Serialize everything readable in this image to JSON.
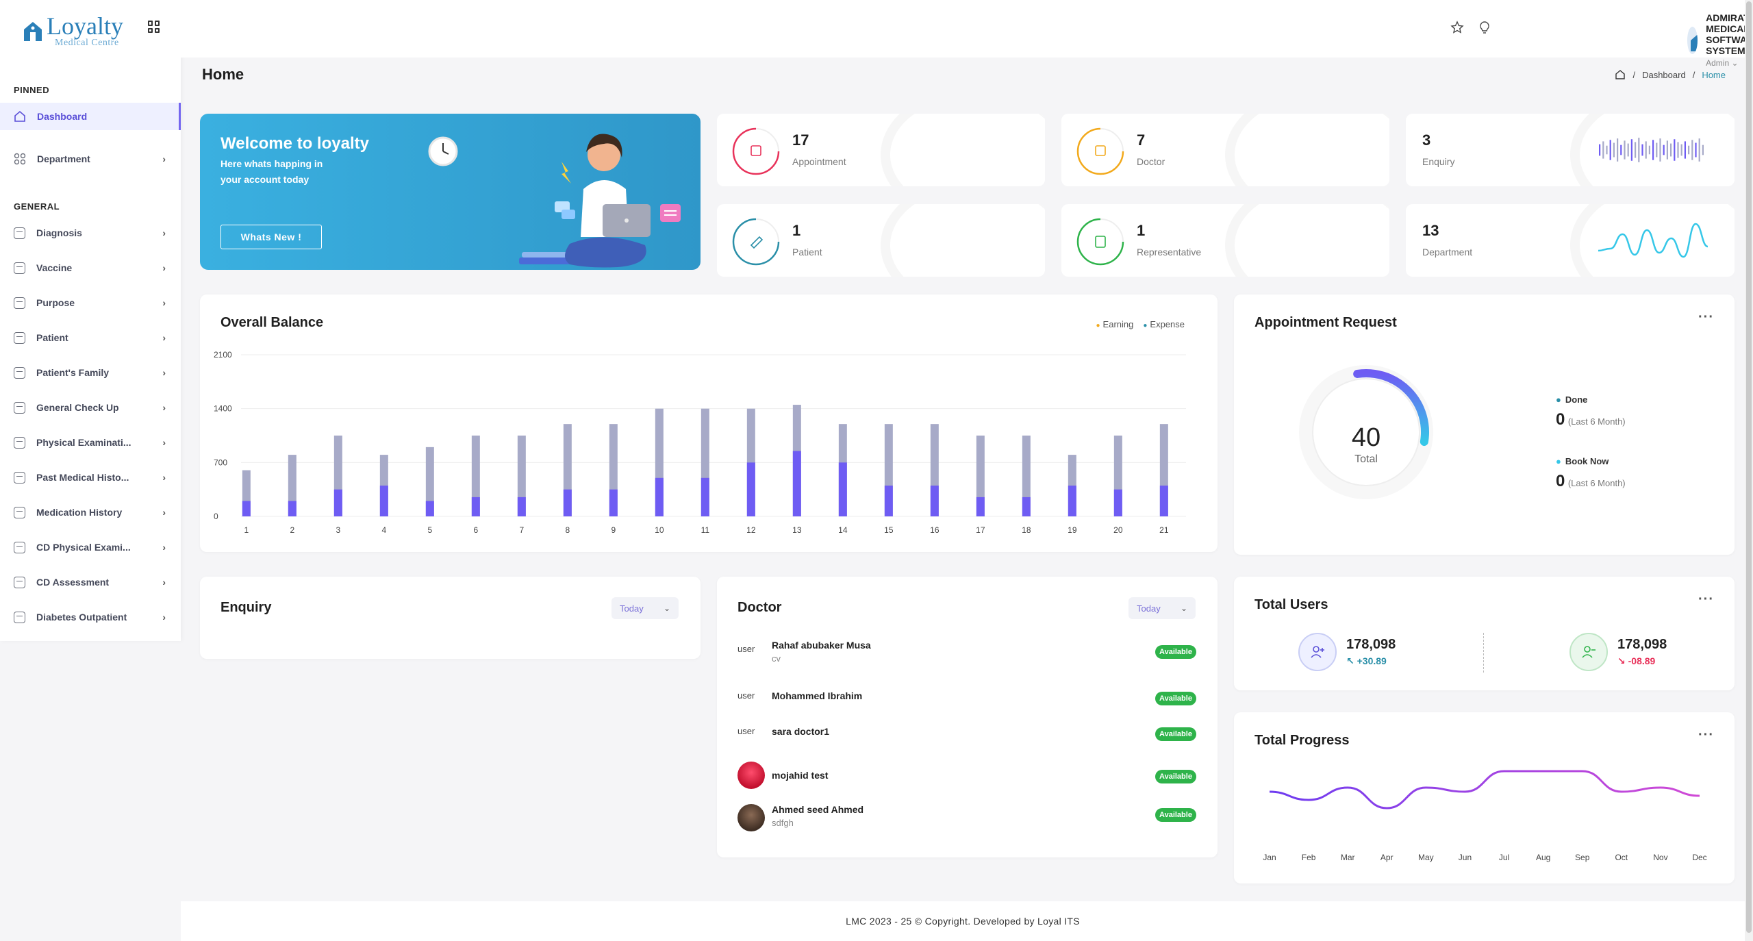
{
  "brand": {
    "title": "Loyalty",
    "subtitle": "Medical Centre"
  },
  "sidebar": {
    "pinned_label": "PINNED",
    "general_label": "GENERAL",
    "pinned": [
      {
        "label": "Dashboard",
        "icon": "home-icon",
        "active": true
      },
      {
        "label": "Department",
        "icon": "apps-icon"
      }
    ],
    "items": [
      {
        "label": "Diagnosis"
      },
      {
        "label": "Vaccine"
      },
      {
        "label": "Purpose"
      },
      {
        "label": "Patient"
      },
      {
        "label": "Patient's Family"
      },
      {
        "label": "General Check Up"
      },
      {
        "label": "Physical Examinati..."
      },
      {
        "label": "Past Medical Histo..."
      },
      {
        "label": "Medication History"
      },
      {
        "label": "CD Physical Exami..."
      },
      {
        "label": "CD Assessment"
      },
      {
        "label": "Diabetes Outpatient"
      }
    ]
  },
  "header": {
    "org_name": "ADMIRAT MEDICAL SOFTWARE SYSTEM",
    "role": "Admin",
    "icons": [
      "star-icon",
      "bulb-icon"
    ]
  },
  "page": {
    "title": "Home",
    "breadcrumb": [
      "Dashboard",
      "Home"
    ]
  },
  "welcome": {
    "title": "Welcome to loyalty",
    "text": "Here whats happing in your account today",
    "button": "Whats New !"
  },
  "stats": [
    {
      "value": "17",
      "label": "Appointment",
      "color": "#e8325a"
    },
    {
      "value": "7",
      "label": "Doctor",
      "color": "#f2a91b"
    },
    {
      "value": "3",
      "label": "Enquiry",
      "color": "#7466f0"
    },
    {
      "value": "1",
      "label": "Patient",
      "color": "#2a8fa8"
    },
    {
      "value": "1",
      "label": "Representative",
      "color": "#2eb34a"
    },
    {
      "value": "13",
      "label": "Department",
      "color": "#35c7e8"
    }
  ],
  "overall_balance": {
    "title": "Overall Balance",
    "legend": [
      "Earning",
      "Expense"
    ],
    "legend_colors": [
      "#f2a91b",
      "#2a8fa8"
    ]
  },
  "chart_data": [
    {
      "type": "bar",
      "title": "Overall Balance",
      "categories": [
        "1",
        "2",
        "3",
        "4",
        "5",
        "6",
        "7",
        "8",
        "9",
        "10",
        "11",
        "12",
        "13",
        "14",
        "15",
        "16",
        "17",
        "18",
        "19",
        "20",
        "21"
      ],
      "series": [
        {
          "name": "Earning",
          "values": [
            200,
            200,
            350,
            400,
            200,
            250,
            250,
            350,
            350,
            500,
            500,
            700,
            850,
            700,
            400,
            400,
            250,
            250,
            400,
            350,
            400
          ],
          "color": "#6e5cf3"
        },
        {
          "name": "Expense",
          "values": [
            600,
            800,
            1050,
            800,
            900,
            1050,
            1050,
            1200,
            1200,
            1400,
            1400,
            1400,
            1450,
            1200,
            1200,
            1200,
            1050,
            1050,
            800,
            1050,
            1200
          ],
          "color": "#a7aac8"
        }
      ],
      "yticks": [
        0,
        700,
        1400,
        2100
      ],
      "ylim": [
        0,
        2100
      ],
      "stacking": "overlay"
    },
    {
      "type": "line",
      "title": "Total Progress",
      "categories": [
        "Jan",
        "Feb",
        "Mar",
        "Apr",
        "May",
        "Jun",
        "Jul",
        "Aug",
        "Sep",
        "Oct",
        "Nov",
        "Dec"
      ],
      "series": [
        {
          "values": [
            45,
            35,
            50,
            25,
            50,
            45,
            70,
            70,
            70,
            45,
            50,
            40
          ]
        }
      ],
      "ylim": [
        0,
        100
      ]
    },
    {
      "type": "line",
      "title": "Department",
      "series": [
        {
          "values": [
            20,
            25,
            60,
            10,
            70,
            15,
            50,
            5,
            85,
            30
          ]
        }
      ]
    },
    {
      "type": "bar",
      "title": "Enquiry",
      "series": [
        {
          "values": [
            40,
            60,
            30,
            70,
            50,
            80,
            35,
            65,
            45,
            75,
            55,
            85,
            40,
            60,
            30,
            70,
            50,
            80,
            35,
            65,
            45,
            75,
            55,
            40,
            60,
            30,
            70,
            50,
            80,
            35
          ]
        }
      ]
    }
  ],
  "appointment_request": {
    "title": "Appointment Request",
    "total": "40",
    "total_label": "Total",
    "progress": 0.3,
    "items": [
      {
        "label": "Done",
        "value": "0",
        "note": "(Last 6 Month)",
        "color": "#2a8fa8"
      },
      {
        "label": "Book Now",
        "value": "0",
        "note": "(Last 6 Month)",
        "color": "#35c7e8"
      }
    ]
  },
  "enquiry": {
    "title": "Enquiry",
    "filter": "Today"
  },
  "doctor": {
    "title": "Doctor",
    "filter": "Today",
    "rows": [
      {
        "alt": "user",
        "name": "Rahaf abubaker Musa",
        "sub": "cv",
        "status": "Available"
      },
      {
        "alt": "user",
        "name": "Mohammed Ibrahim",
        "sub": "",
        "status": "Available"
      },
      {
        "alt": "user",
        "name": "sara doctor1",
        "sub": "",
        "status": "Available"
      },
      {
        "alt": "",
        "name": "mojahid test",
        "sub": "",
        "status": "Available"
      },
      {
        "alt": "",
        "name": "Ahmed seed Ahmed",
        "sub": "sdfgh",
        "status": "Available"
      }
    ]
  },
  "total_users": {
    "title": "Total Users",
    "left": {
      "value": "178,098",
      "change": "+30.89",
      "color": "#2a8fa8"
    },
    "right": {
      "value": "178,098",
      "change": "-08.89",
      "color": "#e8325a"
    }
  },
  "total_progress": {
    "title": "Total Progress"
  },
  "footer": {
    "text": "LMC 2023 - 25 © Copyright. Developed by Loyal ITS"
  }
}
